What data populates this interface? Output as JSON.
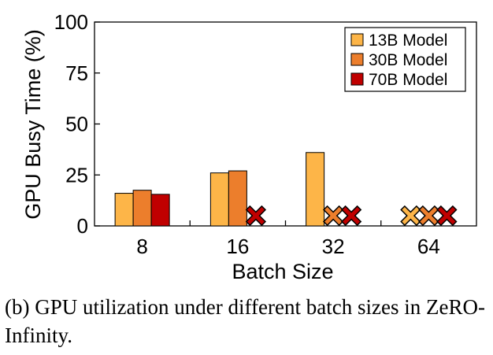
{
  "chart_data": {
    "type": "bar",
    "categories": [
      "8",
      "16",
      "32",
      "64"
    ],
    "series": [
      {
        "name": "13B Model",
        "values": [
          16,
          26,
          36,
          null
        ],
        "oom": [
          false,
          false,
          false,
          true
        ],
        "color": "#FDB548"
      },
      {
        "name": "30B Model",
        "values": [
          17.5,
          27,
          null,
          null
        ],
        "oom": [
          false,
          false,
          true,
          true
        ],
        "color": "#EC7E2C"
      },
      {
        "name": "70B Model",
        "values": [
          15.5,
          null,
          null,
          null
        ],
        "oom": [
          false,
          true,
          true,
          true
        ],
        "color": "#C00000"
      }
    ],
    "xlabel": "Batch Size",
    "ylabel": "GPU Busy Time (%)",
    "ylim": [
      0,
      100
    ],
    "yticks": [
      0,
      25,
      50,
      75,
      100
    ],
    "legend_position": "top-right",
    "oom_marker": "x",
    "oom_value": 5
  },
  "caption": "(b) GPU utilization under different batch sizes in ZeRO-Infinity."
}
